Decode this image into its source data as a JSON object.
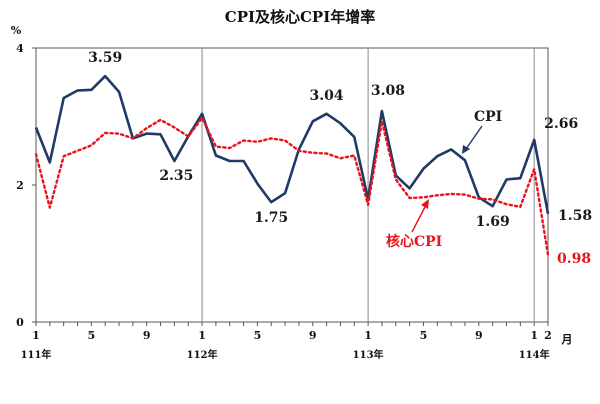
{
  "chart_data": {
    "type": "line",
    "title": "CPI及核心CPI年增率",
    "ylabel": "%",
    "ylim": [
      0,
      4
    ],
    "yticks": [
      "0",
      "2",
      "4"
    ],
    "x_unit": "月",
    "x": [
      "111-1",
      "111-2",
      "111-3",
      "111-4",
      "111-5",
      "111-6",
      "111-7",
      "111-8",
      "111-9",
      "111-10",
      "111-11",
      "111-12",
      "112-1",
      "112-2",
      "112-3",
      "112-4",
      "112-5",
      "112-6",
      "112-7",
      "112-8",
      "112-9",
      "112-10",
      "112-11",
      "112-12",
      "113-1",
      "113-2",
      "113-3",
      "113-4",
      "113-5",
      "113-6",
      "113-7",
      "113-8",
      "113-9",
      "113-10",
      "113-11",
      "113-12",
      "114-1",
      "114-2"
    ],
    "xtick_labels": [
      {
        "index": 0,
        "text": "1"
      },
      {
        "index": 4,
        "text": "5"
      },
      {
        "index": 8,
        "text": "9"
      },
      {
        "index": 12,
        "text": "1"
      },
      {
        "index": 16,
        "text": "5"
      },
      {
        "index": 20,
        "text": "9"
      },
      {
        "index": 24,
        "text": "1"
      },
      {
        "index": 28,
        "text": "5"
      },
      {
        "index": 32,
        "text": "9"
      },
      {
        "index": 36,
        "text": "1"
      },
      {
        "index": 37,
        "text": "2"
      }
    ],
    "year_labels": [
      {
        "index": 0,
        "text": "111年"
      },
      {
        "index": 12,
        "text": "112年"
      },
      {
        "index": 24,
        "text": "113年"
      },
      {
        "index": 36,
        "text": "114年"
      }
    ],
    "series": [
      {
        "name": "CPI",
        "color": "#1f3a66",
        "values": [
          2.84,
          2.33,
          3.27,
          3.38,
          3.39,
          3.59,
          3.36,
          2.68,
          2.75,
          2.74,
          2.35,
          2.71,
          3.04,
          2.43,
          2.35,
          2.35,
          2.02,
          1.75,
          1.88,
          2.52,
          2.93,
          3.04,
          2.9,
          2.7,
          1.79,
          3.08,
          2.14,
          1.95,
          2.24,
          2.42,
          2.52,
          2.36,
          1.82,
          1.69,
          2.08,
          2.1,
          2.66,
          1.58
        ]
      },
      {
        "name": "核心CPI",
        "color": "#e8141b",
        "values": [
          2.45,
          1.67,
          2.42,
          2.5,
          2.58,
          2.76,
          2.75,
          2.68,
          2.83,
          2.95,
          2.84,
          2.71,
          2.98,
          2.56,
          2.54,
          2.65,
          2.63,
          2.68,
          2.65,
          2.5,
          2.47,
          2.46,
          2.39,
          2.43,
          1.71,
          2.93,
          2.08,
          1.81,
          1.82,
          1.85,
          1.87,
          1.86,
          1.8,
          1.79,
          1.72,
          1.68,
          2.23,
          0.98
        ]
      }
    ],
    "annotations": [
      {
        "index": 5,
        "series": 0,
        "text": "3.59"
      },
      {
        "index": 10,
        "series": 0,
        "text": "2.35"
      },
      {
        "index": 17,
        "series": 0,
        "text": "1.75"
      },
      {
        "index": 21,
        "series": 0,
        "text": "3.04"
      },
      {
        "index": 25,
        "series": 0,
        "text": "3.08"
      },
      {
        "index": 33,
        "series": 0,
        "text": "1.69"
      },
      {
        "index": 36,
        "series": 0,
        "text": "2.66"
      },
      {
        "index": 37,
        "series": 0,
        "text": "1.58"
      },
      {
        "index": 37,
        "series": 1,
        "text": "0.98"
      }
    ],
    "grid": false,
    "year_separators": true
  }
}
